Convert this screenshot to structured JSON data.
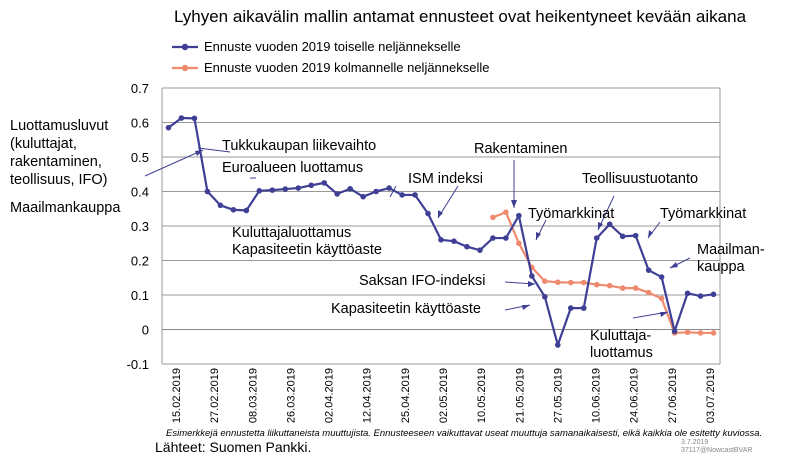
{
  "chart_data": {
    "type": "line",
    "title": "Lyhyen aikavälin mallin antamat ennusteet ovat heikentyneet kevään aikana",
    "xlabel": "",
    "ylabel": "",
    "ylim": [
      -0.1,
      0.7
    ],
    "yticks": [
      "-0.1",
      "0",
      "0.1",
      "0.2",
      "0.3",
      "0.4",
      "0.5",
      "0.6",
      "0.7"
    ],
    "xtick_labels": [
      "15.02.2019",
      "27.02.2019",
      "08.03.2019",
      "26.03.2019",
      "02.04.2019",
      "12.04.2019",
      "25.04.2019",
      "02.05.2019",
      "10.05.2019",
      "21.05.2019",
      "27.05.2019",
      "10.06.2019",
      "24.06.2019",
      "27.06.2019",
      "03.07.2019"
    ],
    "grid": true,
    "legend_position": "top",
    "series": [
      {
        "name": "Ennuste vuoden 2019 toiselle neljännekselle",
        "color": "#3f3f96",
        "values": [
          0.585,
          0.613,
          0.612,
          0.4,
          0.36,
          0.347,
          0.345,
          0.402,
          0.404,
          0.407,
          0.41,
          0.418,
          0.425,
          0.393,
          0.408,
          0.385,
          0.4,
          0.41,
          0.39,
          0.39,
          0.336,
          0.26,
          0.256,
          0.24,
          0.23,
          0.265,
          0.265,
          0.33,
          0.155,
          0.095,
          -0.045,
          0.062,
          0.062,
          0.265,
          0.305,
          0.27,
          0.272,
          0.172,
          0.152,
          -0.005,
          0.105,
          0.097,
          0.102
        ]
      },
      {
        "name": "Ennuste vuoden 2019 kolmannelle neljännekselle",
        "color": "#ef8a6e",
        "start_index": 25,
        "values": [
          0.325,
          0.34,
          0.25,
          0.18,
          0.14,
          0.137,
          0.136,
          0.136,
          0.13,
          0.127,
          0.12,
          0.12,
          0.107,
          0.09,
          -0.01,
          -0.008,
          -0.01,
          -0.01
        ]
      }
    ],
    "annotations": [
      {
        "id": "luottamus",
        "lines": [
          "Luottamusluvut",
          "(kuluttajat,",
          "rakentaminen,",
          "teollisuus, IFO)"
        ]
      },
      {
        "id": "maailmankauppa1",
        "lines": [
          "Maailmankauppa"
        ]
      },
      {
        "id": "tukkukauppa",
        "lines": [
          "Tukkukaupan liikevaihto"
        ]
      },
      {
        "id": "euroalue",
        "lines": [
          "Euroalueen luottamus"
        ]
      },
      {
        "id": "ism",
        "lines": [
          "ISM indeksi"
        ]
      },
      {
        "id": "kuluttaja1",
        "lines": [
          "Kuluttajaluottamus",
          "Kapasiteetin käyttöaste"
        ]
      },
      {
        "id": "rakentaminen",
        "lines": [
          "Rakentaminen"
        ]
      },
      {
        "id": "tyomarkkinat1",
        "lines": [
          "Työmarkkinat"
        ]
      },
      {
        "id": "teollisuus",
        "lines": [
          "Teollisuustuotanto"
        ]
      },
      {
        "id": "tyomarkkinat2",
        "lines": [
          "Työmarkkinat"
        ]
      },
      {
        "id": "maailmankauppa2",
        "lines": [
          "Maailman-",
          "kauppa"
        ]
      },
      {
        "id": "saksan",
        "lines": [
          "Saksan IFO-indeksi"
        ]
      },
      {
        "id": "kapasiteetti",
        "lines": [
          "Kapasiteetin käyttöaste"
        ]
      },
      {
        "id": "kuluttaja2",
        "lines": [
          "Kuluttaja-",
          "luottamus"
        ]
      }
    ]
  },
  "footnote": "Esimerkkejä ennustetta liikuttaneista muuttujista. Ennusteeseen vaikuttavat useat muuttuja samanaikaisesti, eikä kaikkia ole esitetty kuviossa.",
  "source": "Lähteet:  Suomen  Pankki.",
  "stamp_date": "3.7.2019",
  "stamp_code": "37117@NowcastBVAR"
}
